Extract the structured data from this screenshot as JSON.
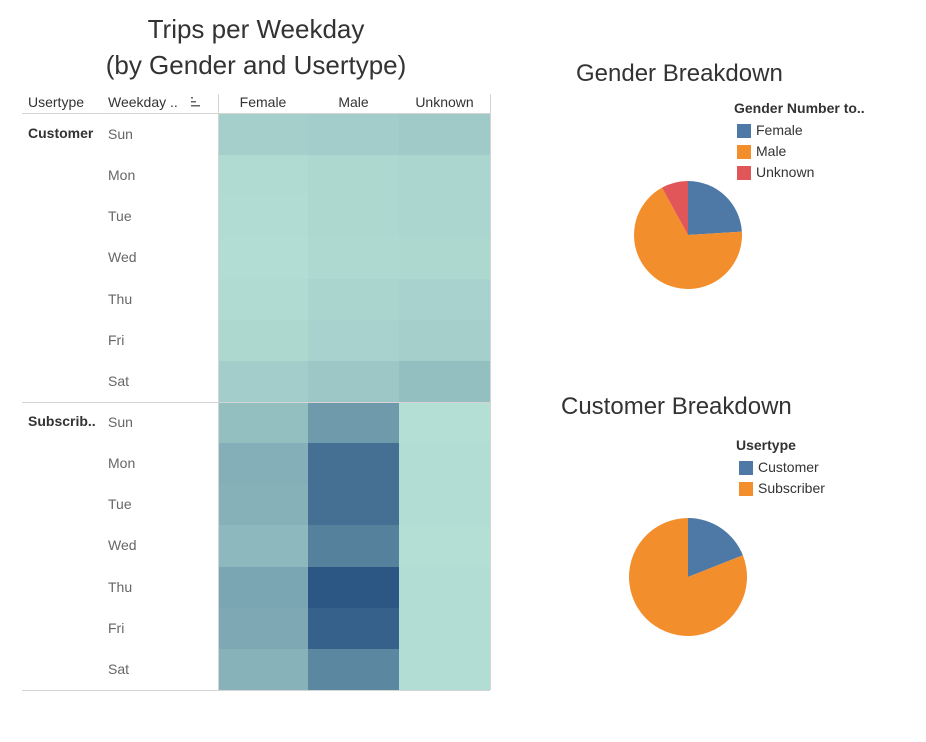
{
  "heatmap": {
    "title_line1": "Trips per Weekday",
    "title_line2": "(by Gender and Usertype)",
    "col_header_usertype": "Usertype",
    "col_header_weekday": "Weekday ..",
    "columns": [
      "Female",
      "Male",
      "Unknown"
    ]
  },
  "pie_gender": {
    "title": "Gender Breakdown",
    "legend_title": "Gender Number to..",
    "legend": [
      "Female",
      "Male",
      "Unknown"
    ]
  },
  "pie_customer": {
    "title": "Customer Breakdown",
    "legend_title": "Usertype",
    "legend": [
      "Customer",
      "Subscriber"
    ]
  },
  "colors": {
    "heat_low": "#b8e3d7",
    "heat_high": "#2c5784",
    "female": "#4e79a7",
    "male": "#f28e2b",
    "unknown": "#e15759",
    "customer": "#4e79a7",
    "subscriber": "#f28e2b"
  },
  "chart_data": [
    {
      "type": "heatmap",
      "title": "Trips per Weekday (by Gender and Usertype)",
      "x_categories": [
        "Female",
        "Male",
        "Unknown"
      ],
      "row_groups": [
        {
          "name": "Customer",
          "rows": [
            "Sun",
            "Mon",
            "Tue",
            "Wed",
            "Thu",
            "Fri",
            "Sat"
          ],
          "values": [
            [
              0.14,
              0.16,
              0.18
            ],
            [
              0.06,
              0.08,
              0.09
            ],
            [
              0.05,
              0.08,
              0.09
            ],
            [
              0.04,
              0.07,
              0.08
            ],
            [
              0.06,
              0.1,
              0.12
            ],
            [
              0.08,
              0.12,
              0.14
            ],
            [
              0.16,
              0.2,
              0.26
            ]
          ]
        },
        {
          "name": "Subscrib..",
          "rows": [
            "Sun",
            "Mon",
            "Tue",
            "Wed",
            "Thu",
            "Fri",
            "Sat"
          ],
          "values": [
            [
              0.26,
              0.52,
              0.03
            ],
            [
              0.37,
              0.82,
              0.04
            ],
            [
              0.36,
              0.82,
              0.04
            ],
            [
              0.31,
              0.7,
              0.03
            ],
            [
              0.44,
              1.0,
              0.04
            ],
            [
              0.42,
              0.93,
              0.04
            ],
            [
              0.35,
              0.66,
              0.04
            ]
          ]
        }
      ],
      "color_range": [
        "heat_low",
        "heat_high"
      ]
    },
    {
      "type": "pie",
      "title": "Gender Breakdown",
      "legend_title": "Gender Number to..",
      "categories": [
        "Female",
        "Male",
        "Unknown"
      ],
      "values": [
        24,
        68,
        8
      ]
    },
    {
      "type": "pie",
      "title": "Customer Breakdown",
      "legend_title": "Usertype",
      "categories": [
        "Customer",
        "Subscriber"
      ],
      "values": [
        19,
        81
      ]
    }
  ]
}
